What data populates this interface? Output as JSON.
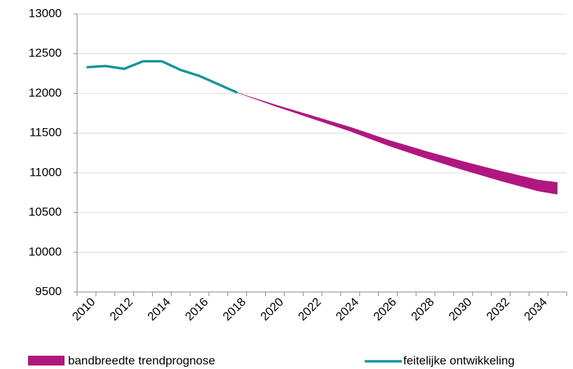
{
  "chart_data": {
    "type": "line",
    "categories": [
      "2010",
      null,
      "2012",
      null,
      "2014",
      null,
      "2016",
      null,
      "2018",
      null,
      "2020",
      null,
      "2022",
      null,
      "2024",
      null,
      "2026",
      null,
      "2028",
      null,
      "2030",
      null,
      "2032",
      null,
      "2034",
      null
    ],
    "series": [
      {
        "name": "bandbreedte trendprognose",
        "type": "band",
        "color": "#b0177e",
        "low": [
          null,
          null,
          null,
          null,
          null,
          null,
          null,
          null,
          12010,
          11926,
          11841,
          11762,
          11682,
          11603,
          11524,
          11434,
          11345,
          11265,
          11186,
          11112,
          11037,
          10968,
          10898,
          10834,
          10770,
          10730
        ],
        "high": [
          null,
          null,
          null,
          null,
          null,
          null,
          null,
          null,
          12010,
          11934,
          11859,
          11788,
          11718,
          11647,
          11576,
          11496,
          11415,
          11345,
          11274,
          11208,
          11143,
          11082,
          11022,
          10966,
          10910,
          10880
        ]
      },
      {
        "name": "feitelijke ontwikkeling",
        "type": "line",
        "color": "#17959c",
        "values": [
          12330,
          12345,
          12310,
          12405,
          12405,
          12295,
          12220,
          12115,
          12010,
          null,
          null,
          null,
          null,
          null,
          null,
          null,
          null,
          null,
          null,
          null,
          null,
          null,
          null,
          null,
          null,
          null
        ]
      }
    ],
    "ylim": [
      9500,
      13000
    ],
    "yticks": [
      9500,
      10000,
      10500,
      11000,
      11500,
      12000,
      12500,
      13000
    ],
    "grid": true
  }
}
